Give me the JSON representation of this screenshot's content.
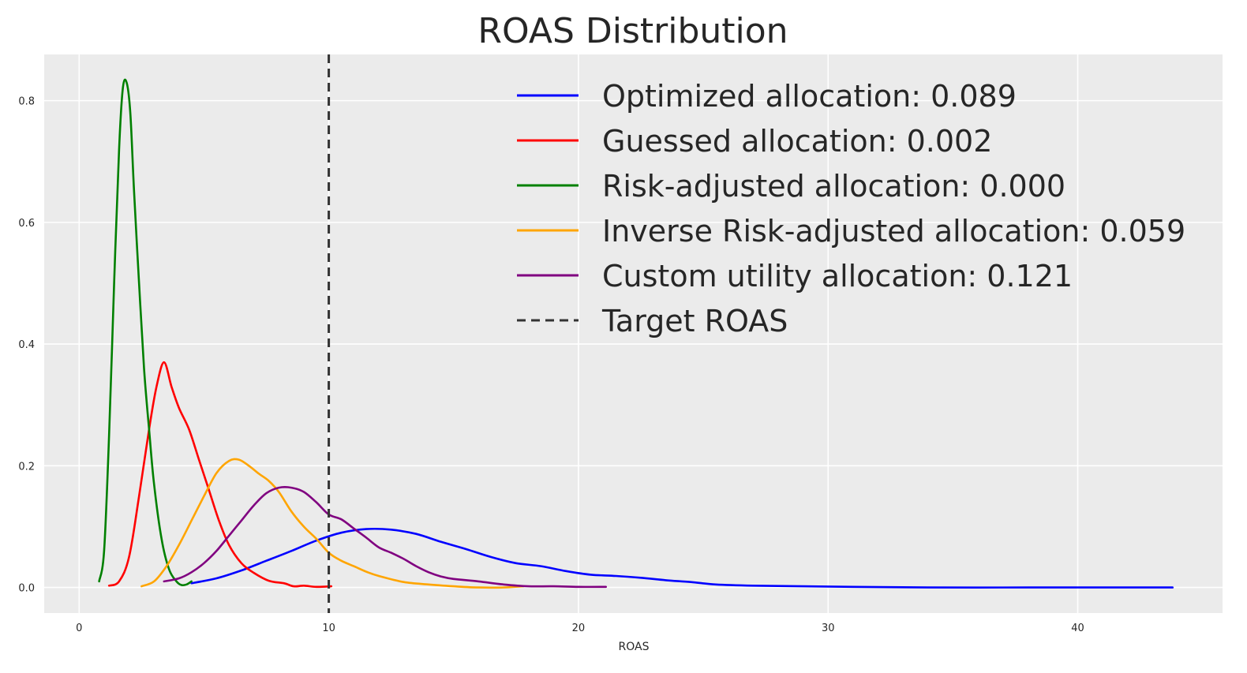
{
  "chart_data": {
    "type": "line",
    "title": "ROAS Distribution",
    "xlabel": "ROAS",
    "ylabel": "",
    "xlim": [
      -1.4,
      45.8
    ],
    "ylim": [
      -0.042,
      0.876
    ],
    "xticks": [
      0,
      10,
      20,
      30,
      40
    ],
    "yticks": [
      0.0,
      0.2,
      0.4,
      0.6,
      0.8
    ],
    "xtick_labels": [
      "0",
      "10",
      "20",
      "30",
      "40"
    ],
    "ytick_labels": [
      "0.0",
      "0.2",
      "0.4",
      "0.6",
      "0.8"
    ],
    "grid": true,
    "legend_position": "top-right",
    "series": [
      {
        "name": "Optimized allocation: 0.089",
        "color": "#0000ff",
        "style": "solid",
        "points": [
          [
            4.5,
            0.007
          ],
          [
            5.5,
            0.015
          ],
          [
            6.5,
            0.028
          ],
          [
            7.5,
            0.044
          ],
          [
            8.5,
            0.06
          ],
          [
            9.5,
            0.077
          ],
          [
            10.5,
            0.09
          ],
          [
            11.5,
            0.096
          ],
          [
            12.5,
            0.095
          ],
          [
            13.5,
            0.088
          ],
          [
            14.5,
            0.075
          ],
          [
            15.5,
            0.063
          ],
          [
            16.5,
            0.05
          ],
          [
            17.5,
            0.04
          ],
          [
            18.5,
            0.035
          ],
          [
            19.5,
            0.027
          ],
          [
            20.5,
            0.021
          ],
          [
            21.5,
            0.019
          ],
          [
            22.5,
            0.016
          ],
          [
            23.5,
            0.012
          ],
          [
            24.5,
            0.009
          ],
          [
            25.5,
            0.005
          ],
          [
            27,
            0.003
          ],
          [
            29,
            0.002
          ],
          [
            31,
            0.001
          ],
          [
            34,
            0.0
          ],
          [
            38,
            0.0
          ],
          [
            41,
            0.0
          ],
          [
            43.8,
            0.0
          ]
        ]
      },
      {
        "name": "Guessed allocation: 0.002",
        "color": "#ff0000",
        "style": "solid",
        "points": [
          [
            1.2,
            0.003
          ],
          [
            1.6,
            0.01
          ],
          [
            2.0,
            0.05
          ],
          [
            2.4,
            0.15
          ],
          [
            2.8,
            0.26
          ],
          [
            3.1,
            0.33
          ],
          [
            3.4,
            0.37
          ],
          [
            3.7,
            0.33
          ],
          [
            4.0,
            0.295
          ],
          [
            4.4,
            0.26
          ],
          [
            4.8,
            0.21
          ],
          [
            5.2,
            0.16
          ],
          [
            5.6,
            0.11
          ],
          [
            6.0,
            0.07
          ],
          [
            6.5,
            0.04
          ],
          [
            7.0,
            0.024
          ],
          [
            7.6,
            0.011
          ],
          [
            8.2,
            0.007
          ],
          [
            8.6,
            0.002
          ],
          [
            9.0,
            0.003
          ],
          [
            9.5,
            0.001
          ],
          [
            10.1,
            0.002
          ]
        ]
      },
      {
        "name": "Risk-adjusted allocation: 0.000",
        "color": "#008000",
        "style": "solid",
        "points": [
          [
            0.8,
            0.01
          ],
          [
            1.0,
            0.06
          ],
          [
            1.2,
            0.25
          ],
          [
            1.4,
            0.5
          ],
          [
            1.6,
            0.72
          ],
          [
            1.75,
            0.82
          ],
          [
            1.9,
            0.83
          ],
          [
            2.05,
            0.78
          ],
          [
            2.2,
            0.65
          ],
          [
            2.4,
            0.5
          ],
          [
            2.6,
            0.36
          ],
          [
            2.8,
            0.26
          ],
          [
            3.0,
            0.17
          ],
          [
            3.3,
            0.08
          ],
          [
            3.6,
            0.03
          ],
          [
            3.9,
            0.01
          ],
          [
            4.1,
            0.004
          ],
          [
            4.3,
            0.005
          ],
          [
            4.5,
            0.01
          ]
        ]
      },
      {
        "name": "Inverse Risk-adjusted allocation: 0.059",
        "color": "#ffa500",
        "style": "solid",
        "points": [
          [
            2.5,
            0.002
          ],
          [
            3.0,
            0.01
          ],
          [
            3.5,
            0.035
          ],
          [
            4.0,
            0.07
          ],
          [
            4.5,
            0.11
          ],
          [
            5.0,
            0.15
          ],
          [
            5.5,
            0.188
          ],
          [
            6.0,
            0.208
          ],
          [
            6.4,
            0.21
          ],
          [
            6.8,
            0.2
          ],
          [
            7.2,
            0.187
          ],
          [
            7.6,
            0.175
          ],
          [
            8.0,
            0.157
          ],
          [
            8.5,
            0.125
          ],
          [
            9.0,
            0.1
          ],
          [
            9.5,
            0.08
          ],
          [
            10.0,
            0.057
          ],
          [
            10.5,
            0.044
          ],
          [
            11.0,
            0.035
          ],
          [
            11.5,
            0.026
          ],
          [
            12.0,
            0.019
          ],
          [
            13.0,
            0.009
          ],
          [
            14.0,
            0.005
          ],
          [
            15.0,
            0.002
          ],
          [
            16.0,
            0.0
          ],
          [
            17.0,
            0.0
          ],
          [
            17.8,
            0.002
          ]
        ]
      },
      {
        "name": "Custom utility allocation: 0.121",
        "color": "#800080",
        "style": "solid",
        "points": [
          [
            3.4,
            0.01
          ],
          [
            4.0,
            0.015
          ],
          [
            4.5,
            0.025
          ],
          [
            5.0,
            0.04
          ],
          [
            5.5,
            0.06
          ],
          [
            6.0,
            0.085
          ],
          [
            6.5,
            0.11
          ],
          [
            7.0,
            0.135
          ],
          [
            7.5,
            0.155
          ],
          [
            8.0,
            0.164
          ],
          [
            8.5,
            0.164
          ],
          [
            9.0,
            0.157
          ],
          [
            9.5,
            0.14
          ],
          [
            10.0,
            0.12
          ],
          [
            10.5,
            0.112
          ],
          [
            11.0,
            0.097
          ],
          [
            11.5,
            0.082
          ],
          [
            12.0,
            0.066
          ],
          [
            12.5,
            0.057
          ],
          [
            13.0,
            0.047
          ],
          [
            13.5,
            0.035
          ],
          [
            14.0,
            0.025
          ],
          [
            14.5,
            0.018
          ],
          [
            15.0,
            0.014
          ],
          [
            16.0,
            0.01
          ],
          [
            17.0,
            0.005
          ],
          [
            18.0,
            0.002
          ],
          [
            19.0,
            0.002
          ],
          [
            20.0,
            0.001
          ],
          [
            21.1,
            0.001
          ]
        ]
      },
      {
        "name": "Target ROAS",
        "color": "#333333",
        "style": "dashed",
        "vline": 10
      }
    ]
  }
}
